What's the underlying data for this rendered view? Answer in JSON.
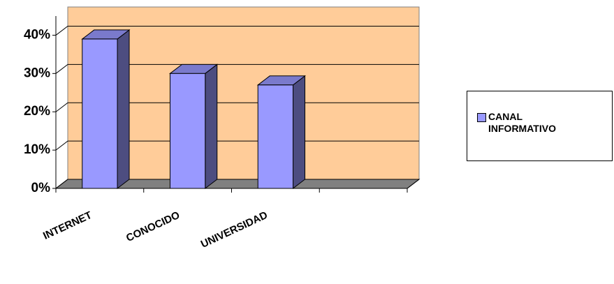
{
  "chart_data": {
    "type": "bar",
    "categories": [
      "INTERNET",
      "CONOCIDO",
      "UNIVERSIDAD",
      null
    ],
    "series": [
      {
        "name": "CANAL INFORMATIVO",
        "color": "#9999ff",
        "values": [
          39,
          30,
          27,
          null
        ]
      }
    ],
    "ylim": [
      0,
      45
    ],
    "yticks": [
      {
        "value": 0,
        "label": "0%"
      },
      {
        "value": 10,
        "label": "10%"
      },
      {
        "value": 20,
        "label": "20%"
      },
      {
        "value": 30,
        "label": "30%"
      },
      {
        "value": 40,
        "label": "40%"
      }
    ],
    "grid": true,
    "legend": "right"
  }
}
